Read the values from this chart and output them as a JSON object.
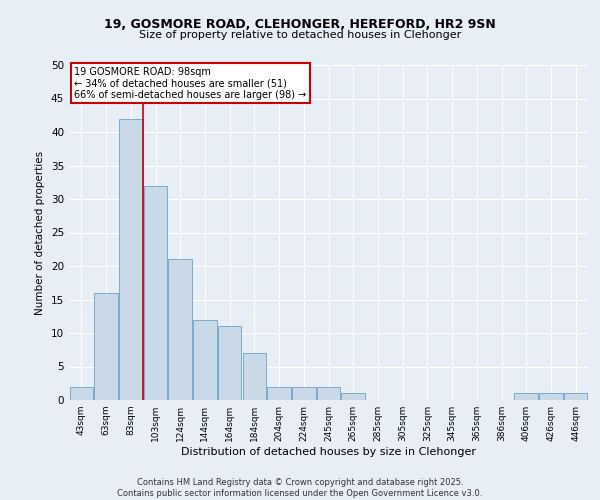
{
  "title": "19, GOSMORE ROAD, CLEHONGER, HEREFORD, HR2 9SN",
  "subtitle": "Size of property relative to detached houses in Clehonger",
  "xlabel": "Distribution of detached houses by size in Clehonger",
  "ylabel": "Number of detached properties",
  "categories": [
    "43sqm",
    "63sqm",
    "83sqm",
    "103sqm",
    "124sqm",
    "144sqm",
    "164sqm",
    "184sqm",
    "204sqm",
    "224sqm",
    "245sqm",
    "265sqm",
    "285sqm",
    "305sqm",
    "325sqm",
    "345sqm",
    "365sqm",
    "386sqm",
    "406sqm",
    "426sqm",
    "446sqm"
  ],
  "values": [
    2,
    16,
    42,
    32,
    21,
    12,
    11,
    7,
    2,
    2,
    2,
    1,
    0,
    0,
    0,
    0,
    0,
    0,
    1,
    1,
    1
  ],
  "bar_color": "#c9d9e8",
  "bar_edge_color": "#7aabcc",
  "background_color": "#e8eef5",
  "grid_color": "#ffffff",
  "property_label": "19 GOSMORE ROAD: 98sqm",
  "annotation_line1": "← 34% of detached houses are smaller (51)",
  "annotation_line2": "66% of semi-detached houses are larger (98) →",
  "annotation_box_color": "#ffffff",
  "annotation_box_edge": "#cc0000",
  "vline_color": "#cc0000",
  "vline_x_index": 2,
  "ylim": [
    0,
    50
  ],
  "yticks": [
    0,
    5,
    10,
    15,
    20,
    25,
    30,
    35,
    40,
    45,
    50
  ],
  "footnote1": "Contains HM Land Registry data © Crown copyright and database right 2025.",
  "footnote2": "Contains public sector information licensed under the Open Government Licence v3.0."
}
